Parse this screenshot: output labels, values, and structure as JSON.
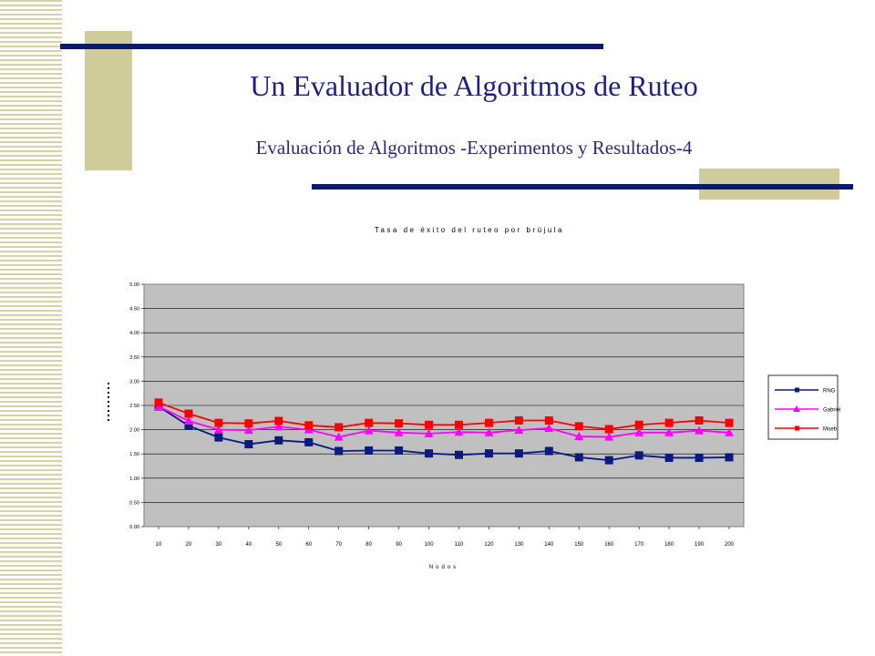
{
  "slide": {
    "title": "Un Evaluador de Algoritmos de Ruteo",
    "subtitle": "Evaluación de Algoritmos -Experimentos y Resultados-4"
  },
  "colors": {
    "accent_bar": "#0a1a6e",
    "accent_block": "#cfcb9a",
    "plot_area": "#c0c0c0",
    "title_text": "#1f1f8a"
  },
  "chart_data": {
    "type": "line",
    "title": "Tasa de éxito del ruteo por brújula",
    "xlabel": "Nodos",
    "ylabel": "",
    "categories": [
      "10",
      "20",
      "30",
      "40",
      "50",
      "60",
      "70",
      "80",
      "90",
      "100",
      "110",
      "120",
      "130",
      "140",
      "150",
      "160",
      "170",
      "180",
      "190",
      "200"
    ],
    "y_ticks": [
      "0.00",
      "0.50",
      "1.00",
      "1.50",
      "2.00",
      "2.50",
      "3.00",
      "3.50",
      "4.00",
      "4.50",
      "5.00"
    ],
    "ylim": [
      0,
      5
    ],
    "grid": true,
    "legend_position": "right",
    "series": [
      {
        "name": "RNG",
        "color": "#0a1a80",
        "marker": "square",
        "values": [
          2.48,
          2.08,
          1.84,
          1.7,
          1.78,
          1.74,
          1.56,
          1.57,
          1.57,
          1.51,
          1.48,
          1.51,
          1.51,
          1.56,
          1.43,
          1.37,
          1.47,
          1.42,
          1.42,
          1.43
        ]
      },
      {
        "name": "Gabriel",
        "color": "#ff00ff",
        "marker": "triangle",
        "values": [
          2.48,
          2.18,
          2.0,
          1.99,
          2.06,
          2.0,
          1.85,
          1.98,
          1.94,
          1.92,
          1.95,
          1.94,
          1.99,
          2.03,
          1.86,
          1.85,
          1.94,
          1.94,
          1.98,
          1.94
        ]
      },
      {
        "name": "Moeb",
        "color": "#ff0000",
        "marker": "square",
        "values": [
          2.56,
          2.33,
          2.14,
          2.13,
          2.18,
          2.09,
          2.05,
          2.14,
          2.13,
          2.1,
          2.1,
          2.14,
          2.19,
          2.19,
          2.07,
          2.01,
          2.1,
          2.14,
          2.19,
          2.14
        ]
      }
    ]
  }
}
